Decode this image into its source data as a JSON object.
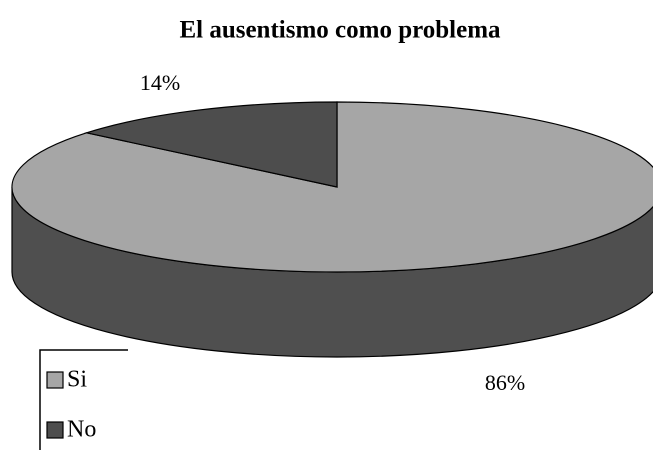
{
  "chart_data": {
    "type": "pie",
    "title": "El ausentismo como problema",
    "categories": [
      "Si",
      "No"
    ],
    "values": [
      86,
      14
    ],
    "value_labels": [
      "86%",
      "14%"
    ],
    "colors": [
      "#a6a6a6",
      "#4d4d4d"
    ],
    "legend": "bottom-left",
    "three_d": true
  }
}
